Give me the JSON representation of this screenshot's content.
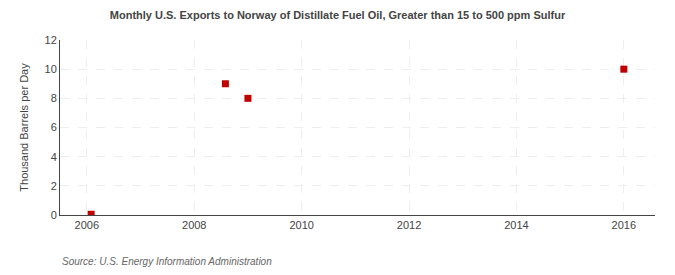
{
  "chart_data": {
    "type": "scatter",
    "title": "Monthly U.S. Exports to Norway of Distillate Fuel Oil, Greater than 15 to 500 ppm Sulfur",
    "ylabel": "Thousand Barrels per Day",
    "annotations": [
      "Source: U.S. Energy Information Administration"
    ],
    "x": [
      2006.08,
      2008.58,
      2009.0,
      2016.0
    ],
    "values": [
      0.05,
      9.0,
      8.0,
      10.0
    ],
    "color": "#c00000",
    "marker": "square",
    "xlim": [
      2005.5,
      2016.58
    ],
    "ylim": [
      0,
      12
    ],
    "xticks": [
      2006,
      2008,
      2010,
      2012,
      2014,
      2016
    ],
    "yticks": [
      0,
      2,
      4,
      6,
      8,
      10,
      12
    ],
    "grid": true
  }
}
